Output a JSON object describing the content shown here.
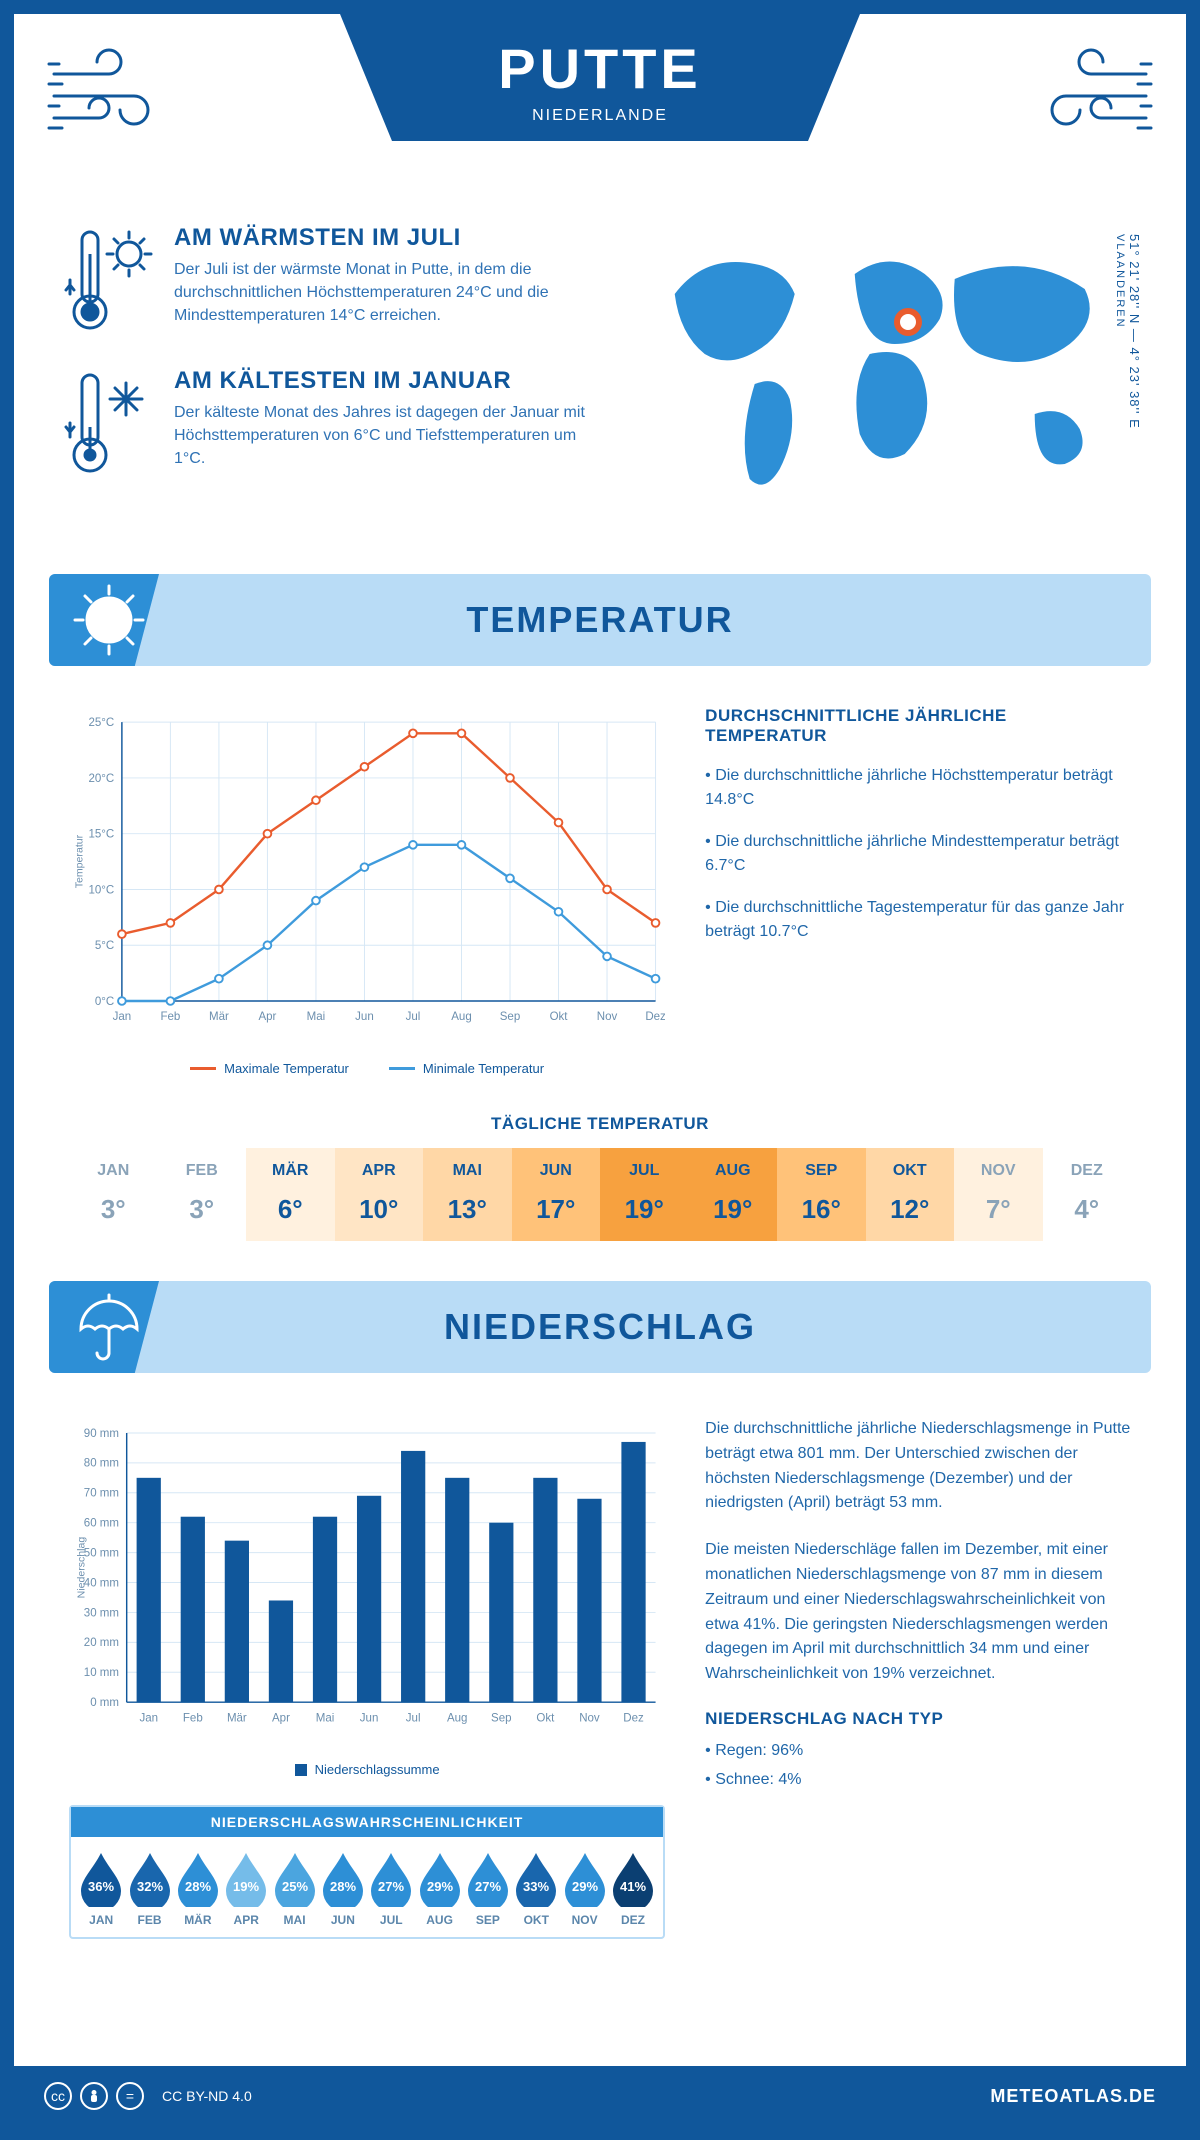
{
  "header": {
    "city": "PUTTE",
    "country": "NIEDERLANDE"
  },
  "location": {
    "coords": "51° 21' 28'' N — 4° 23' 38'' E",
    "region": "VLAANDEREN"
  },
  "fact_warm": {
    "title": "AM WÄRMSTEN IM JULI",
    "text": "Der Juli ist der wärmste Monat in Putte, in dem die durchschnittlichen Höchsttemperaturen 24°C und die Mindesttemperaturen 14°C erreichen."
  },
  "fact_cold": {
    "title": "AM KÄLTESTEN IM JANUAR",
    "text": "Der kälteste Monat des Jahres ist dagegen der Januar mit Höchsttemperaturen von 6°C und Tiefsttemperaturen um 1°C."
  },
  "sections": {
    "temp": "TEMPERATUR",
    "precip": "NIEDERSCHLAG"
  },
  "temperature_chart": {
    "type": "line",
    "months": [
      "Jan",
      "Feb",
      "Mär",
      "Apr",
      "Mai",
      "Jun",
      "Jul",
      "Aug",
      "Sep",
      "Okt",
      "Nov",
      "Dez"
    ],
    "series_max": {
      "label": "Maximale Temperatur",
      "color": "#e95c2e",
      "values": [
        6,
        7,
        10,
        15,
        18,
        21,
        24,
        24,
        20,
        16,
        10,
        7
      ]
    },
    "series_min": {
      "label": "Minimale Temperatur",
      "color": "#3f9bdc",
      "values": [
        0,
        0,
        2,
        5,
        9,
        12,
        14,
        14,
        11,
        8,
        4,
        2
      ]
    },
    "ylabel": "Temperatur",
    "ylim": [
      0,
      25
    ],
    "ytick_step": 5,
    "grid_color": "#d6e7f5",
    "axis_color": "#10579b"
  },
  "temp_text": {
    "title": "DURCHSCHNITTLICHE JÄHRLICHE TEMPERATUR",
    "b1": "• Die durchschnittliche jährliche Höchsttemperatur beträgt 14.8°C",
    "b2": "• Die durchschnittliche jährliche Mindesttemperatur beträgt 6.7°C",
    "b3": "• Die durchschnittliche Tagestemperatur für das ganze Jahr beträgt 10.7°C"
  },
  "daily_temp": {
    "title": "TÄGLICHE TEMPERATUR",
    "months": [
      "JAN",
      "FEB",
      "MÄR",
      "APR",
      "MAI",
      "JUN",
      "JUL",
      "AUG",
      "SEP",
      "OKT",
      "NOV",
      "DEZ"
    ],
    "values": [
      "3°",
      "3°",
      "6°",
      "10°",
      "13°",
      "17°",
      "19°",
      "19°",
      "16°",
      "12°",
      "7°",
      "4°"
    ],
    "bg": [
      "#ffffff",
      "#ffffff",
      "#fff1df",
      "#ffe5c5",
      "#ffd7a6",
      "#ffc279",
      "#f7a13f",
      "#f7a13f",
      "#ffc279",
      "#ffd7a6",
      "#fff1df",
      "#ffffff"
    ],
    "text": [
      "#8aa3b8",
      "#8aa3b8",
      "#10579b",
      "#10579b",
      "#10579b",
      "#10579b",
      "#10579b",
      "#10579b",
      "#10579b",
      "#10579b",
      "#8aa3b8",
      "#8aa3b8"
    ]
  },
  "precip_chart": {
    "type": "bar",
    "months": [
      "Jan",
      "Feb",
      "Mär",
      "Apr",
      "Mai",
      "Jun",
      "Jul",
      "Aug",
      "Sep",
      "Okt",
      "Nov",
      "Dez"
    ],
    "values": [
      75,
      62,
      54,
      34,
      62,
      69,
      84,
      75,
      60,
      75,
      68,
      87
    ],
    "color": "#10579b",
    "ylabel": "Niederschlag",
    "ylim": [
      0,
      90
    ],
    "ytick_step": 10,
    "legend": "Niederschlagssumme",
    "grid_color": "#d6e7f5"
  },
  "precip_text": {
    "p1": "Die durchschnittliche jährliche Niederschlagsmenge in Putte beträgt etwa 801 mm. Der Unterschied zwischen der höchsten Niederschlagsmenge (Dezember) und der niedrigsten (April) beträgt 53 mm.",
    "p2": "Die meisten Niederschläge fallen im Dezember, mit einer monatlichen Niederschlagsmenge von 87 mm in diesem Zeitraum und einer Niederschlagswahrscheinlichkeit von etwa 41%. Die geringsten Niederschlagsmengen werden dagegen im April mit durchschnittlich 34 mm und einer Wahrscheinlichkeit von 19% verzeichnet.",
    "type_title": "NIEDERSCHLAG NACH TYP",
    "type_b1": "• Regen: 96%",
    "type_b2": "• Schnee: 4%"
  },
  "precip_prob": {
    "title": "NIEDERSCHLAGSWAHRSCHEINLICHKEIT",
    "months": [
      "JAN",
      "FEB",
      "MÄR",
      "APR",
      "MAI",
      "JUN",
      "JUL",
      "AUG",
      "SEP",
      "OKT",
      "NOV",
      "DEZ"
    ],
    "values": [
      "36%",
      "32%",
      "28%",
      "19%",
      "25%",
      "28%",
      "27%",
      "29%",
      "27%",
      "33%",
      "29%",
      "41%"
    ],
    "colors": [
      "#10579b",
      "#1966ad",
      "#2d8fd6",
      "#75bce9",
      "#4ba5df",
      "#2d8fd6",
      "#2d8fd6",
      "#2d8fd6",
      "#2d8fd6",
      "#1966ad",
      "#2d8fd6",
      "#0b3f72"
    ]
  },
  "footer": {
    "license": "CC BY-ND 4.0",
    "brand": "METEOATLAS.DE"
  }
}
